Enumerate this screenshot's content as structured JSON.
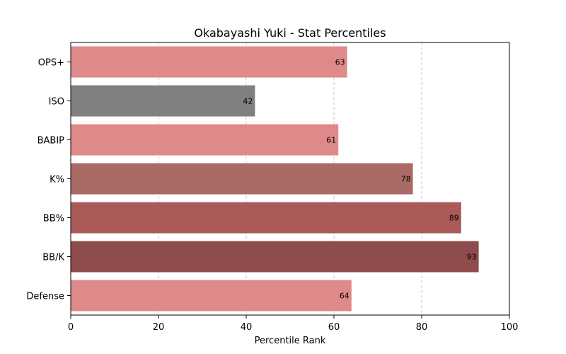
{
  "chart_data": {
    "type": "bar",
    "orientation": "horizontal",
    "title": "Okabayashi Yuki - Stat Percentiles",
    "xlabel": "Percentile Rank",
    "ylabel": "",
    "xlim": [
      0,
      100
    ],
    "x_ticks": [
      0,
      20,
      40,
      60,
      80,
      100
    ],
    "grid": "vertical dashed",
    "categories": [
      "OPS+",
      "ISO",
      "BABIP",
      "K%",
      "BB%",
      "BB/K",
      "Defense"
    ],
    "values": [
      63,
      42,
      61,
      78,
      89,
      93,
      64
    ],
    "colors": [
      "#de8a8a",
      "#808080",
      "#de8a8a",
      "#aa6a66",
      "#aa5a58",
      "#8e4c4c",
      "#de8a8a"
    ]
  }
}
